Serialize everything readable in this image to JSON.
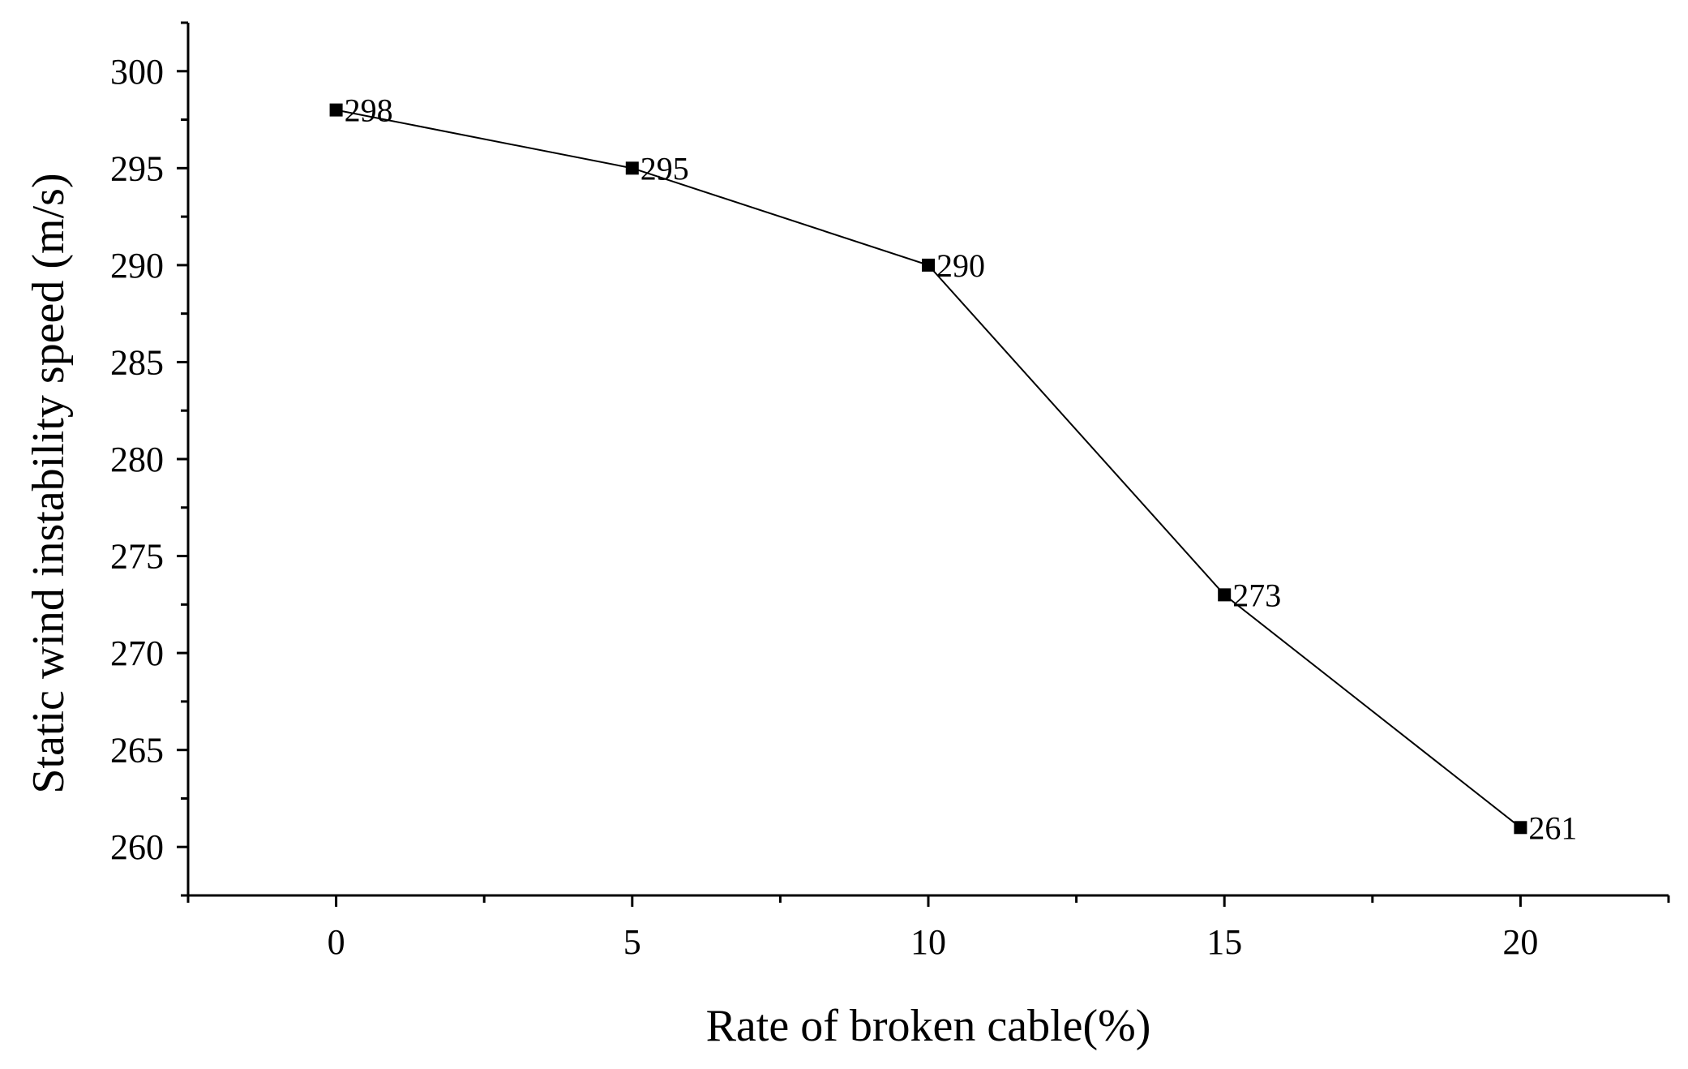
{
  "chart_data": {
    "type": "line",
    "title": "",
    "xlabel": "Rate of broken cable(%)",
    "ylabel": "Static wind instability speed (m/s)",
    "x": [
      0,
      5,
      10,
      15,
      20
    ],
    "series": [
      {
        "values": [
          298,
          295,
          290,
          273,
          261
        ],
        "marker": "square",
        "color": "#000000"
      }
    ],
    "data_labels": [
      "298",
      "295",
      "290",
      "273",
      "261"
    ],
    "xlim": [
      -2.5,
      22.5
    ],
    "ylim": [
      257.5,
      302.5
    ],
    "x_ticks": [
      0,
      5,
      10,
      15,
      20
    ],
    "x_tick_labels": [
      "0",
      "5",
      "10",
      "15",
      "20"
    ],
    "y_ticks": [
      260,
      265,
      270,
      275,
      280,
      285,
      290,
      295,
      300
    ],
    "y_tick_labels": [
      "260",
      "265",
      "270",
      "275",
      "280",
      "285",
      "290",
      "295",
      "300"
    ],
    "grid": false,
    "legend": "none"
  }
}
